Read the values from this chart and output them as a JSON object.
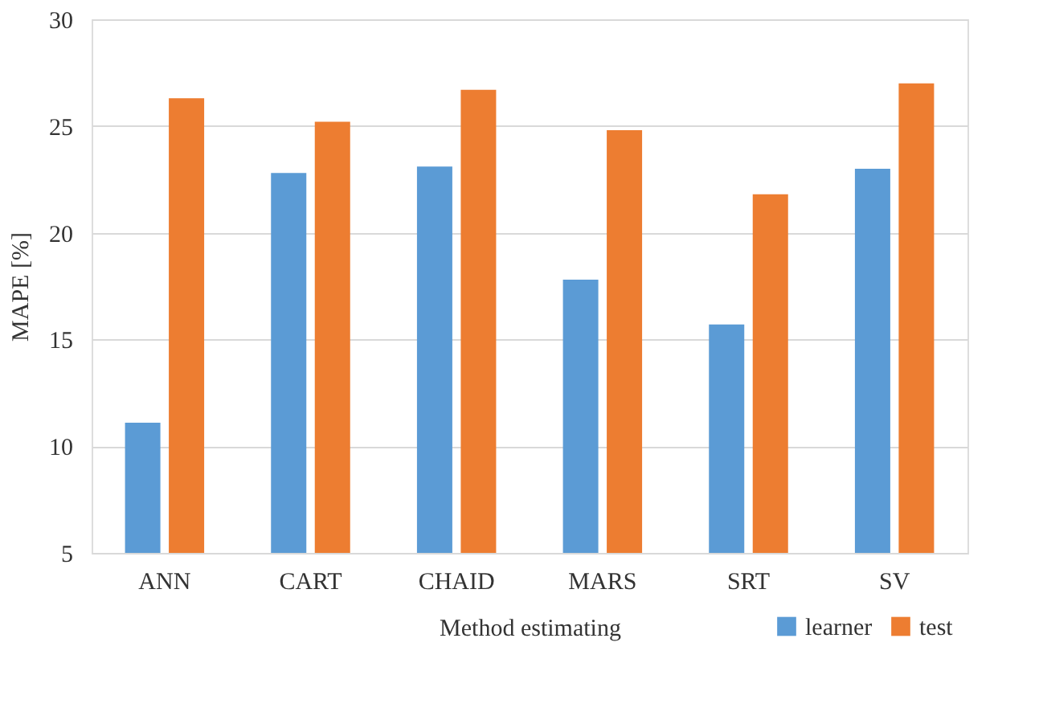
{
  "chart_data": {
    "type": "bar",
    "xlabel": "Method estimating",
    "ylabel": "MAPE [%]",
    "categories": [
      "ANN",
      "CART",
      "CHAID",
      "MARS",
      "SRT",
      "SV"
    ],
    "series": [
      {
        "name": "learner",
        "color": "#5b9bd5",
        "values": [
          11.1,
          22.8,
          23.1,
          17.8,
          15.7,
          23.0
        ]
      },
      {
        "name": "test",
        "color": "#ed7d31",
        "values": [
          26.3,
          25.2,
          26.7,
          24.8,
          21.8,
          27.0
        ]
      }
    ],
    "ylim": [
      5,
      30
    ],
    "yticks": [
      5,
      10,
      15,
      20,
      25,
      30
    ],
    "grid": "y",
    "legend": "bottom right"
  }
}
